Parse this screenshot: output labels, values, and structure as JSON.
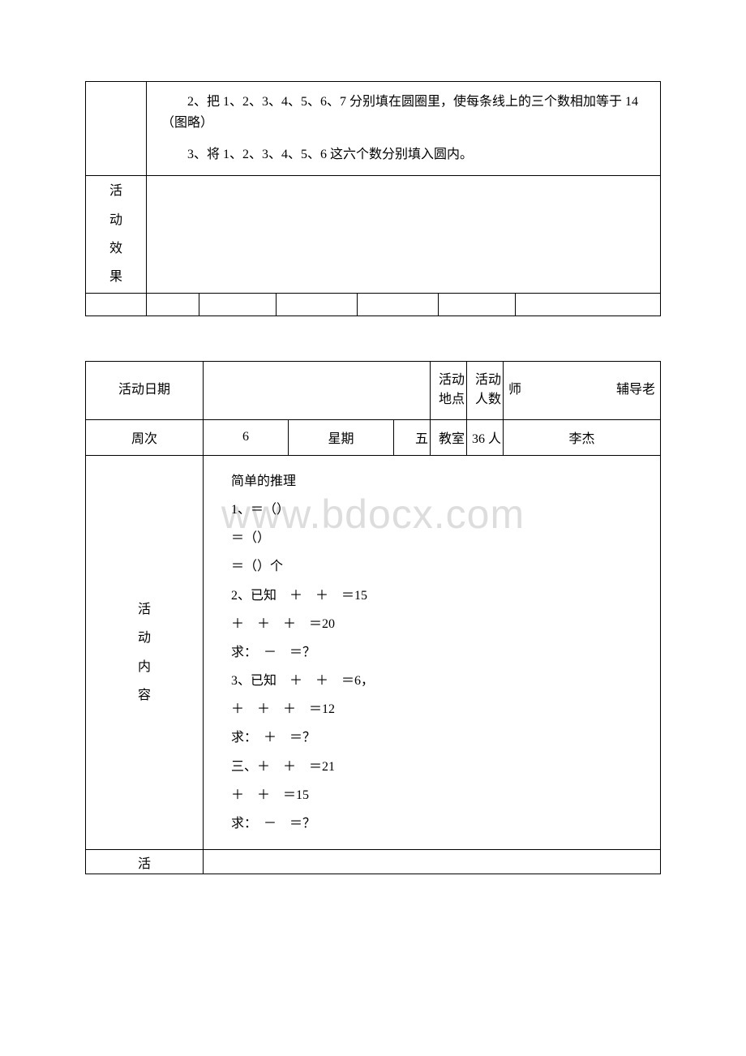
{
  "watermark": "www.bdocx.com",
  "table1": {
    "content_paragraphs": [
      "2、把 1、2、3、4、5、6、7 分别填在圆圈里，使每条线上的三个数相加等于 14（图略）",
      "3、将 1、2、3、4、5、6 这六个数分别填入圆内。"
    ],
    "row2_label_chars": [
      "活",
      "动",
      "效",
      "果"
    ]
  },
  "table2": {
    "header": {
      "col1": "活动日期",
      "col3": "活动地点",
      "col4": "活动人数",
      "col5_left": "师",
      "col5_right": "辅导老"
    },
    "data_row": {
      "week_label": "周次",
      "week_value": "6",
      "day_label": "星期",
      "day_value": "五",
      "place": "教室",
      "people": "36 人",
      "teacher": "李杰"
    },
    "content_label_chars": [
      "活",
      "动",
      "内",
      "容"
    ],
    "content_lines": [
      "简单的推理",
      "1、＝（）",
      "＝（）",
      "＝（）个",
      "2、已知　＋　＋　＝15",
      "＋　＋　＋　＝20",
      "求：　－　＝？",
      "3、已知　＋　＋　＝6，",
      "＋　＋　＋　＝12",
      "求：　＋　＝？",
      "三、＋　＋　＝21",
      "＋　＋　＝15",
      "求：　－　＝？"
    ],
    "last_row_label": "活"
  }
}
